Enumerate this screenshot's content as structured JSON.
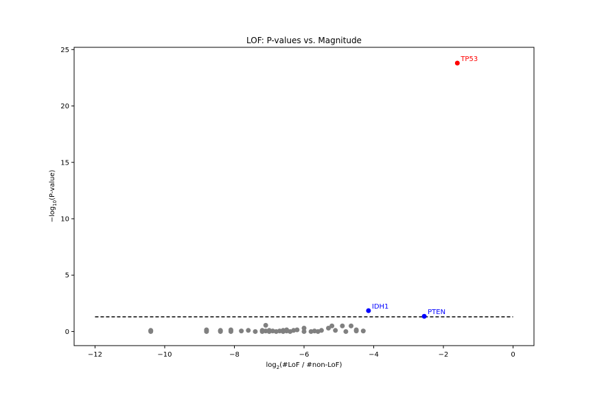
{
  "chart_data": {
    "type": "scatter",
    "title": "LOF: P-values vs. Magnitude",
    "xlabel": {
      "prefix": "log",
      "sub": "2",
      "suffix": "(#LoF / #non-LoF)"
    },
    "ylabel": {
      "prefix": "−log",
      "sub": "10",
      "suffix": "(P-value)"
    },
    "xlim": [
      -12.6,
      0.6
    ],
    "ylim": [
      -1.25,
      25.2
    ],
    "xticks": [
      {
        "value": -12,
        "label": "−12"
      },
      {
        "value": -10,
        "label": "−10"
      },
      {
        "value": -8,
        "label": "−8"
      },
      {
        "value": -6,
        "label": "−6"
      },
      {
        "value": -4,
        "label": "−4"
      },
      {
        "value": -2,
        "label": "−2"
      },
      {
        "value": 0,
        "label": "0"
      }
    ],
    "yticks": [
      {
        "value": 0,
        "label": "0"
      },
      {
        "value": 5,
        "label": "5"
      },
      {
        "value": 10,
        "label": "10"
      },
      {
        "value": 15,
        "label": "15"
      },
      {
        "value": 20,
        "label": "20"
      },
      {
        "value": 25,
        "label": "25"
      }
    ],
    "grid": false,
    "threshold": {
      "y": 1.3,
      "x_range": [
        -12,
        0
      ],
      "style": "dashed",
      "color": "#000000"
    },
    "background_points": {
      "color": "#808080",
      "x": [
        -10.4,
        -10.4,
        -10.4,
        -8.8,
        -8.8,
        -8.8,
        -8.4,
        -8.4,
        -8.4,
        -8.1,
        -8.1,
        -8.1,
        -7.8,
        -7.6,
        -7.4,
        -7.2,
        -7.2,
        -7.1,
        -7.1,
        -7.0,
        -7.0,
        -6.9,
        -6.8,
        -6.7,
        -6.6,
        -6.6,
        -6.5,
        -6.5,
        -6.4,
        -6.3,
        -6.2,
        -6.0,
        -6.0,
        -5.8,
        -5.7,
        -5.6,
        -5.5,
        -5.3,
        -5.2,
        -5.1,
        -4.9,
        -4.8,
        -4.65,
        -4.5,
        -4.5,
        -4.3
      ],
      "y": [
        0.0,
        0.05,
        0.1,
        0.0,
        0.1,
        0.15,
        0.0,
        0.05,
        0.1,
        0.0,
        0.1,
        0.15,
        0.05,
        0.1,
        0.0,
        0.0,
        0.1,
        0.55,
        0.05,
        0.0,
        0.1,
        0.05,
        0.0,
        0.05,
        0.1,
        0.0,
        0.15,
        0.05,
        0.0,
        0.1,
        0.15,
        0.0,
        0.3,
        0.0,
        0.05,
        0.0,
        0.1,
        0.3,
        0.5,
        0.1,
        0.5,
        0.0,
        0.5,
        0.05,
        0.15,
        0.05
      ]
    },
    "highlighted": [
      {
        "name": "TP53",
        "x": -1.6,
        "y": 23.8,
        "color": "#ff0000"
      },
      {
        "name": "IDH1",
        "x": -4.15,
        "y": 1.85,
        "color": "#0000ff"
      },
      {
        "name": "PTEN",
        "x": -2.55,
        "y": 1.35,
        "color": "#0000ff"
      }
    ]
  }
}
